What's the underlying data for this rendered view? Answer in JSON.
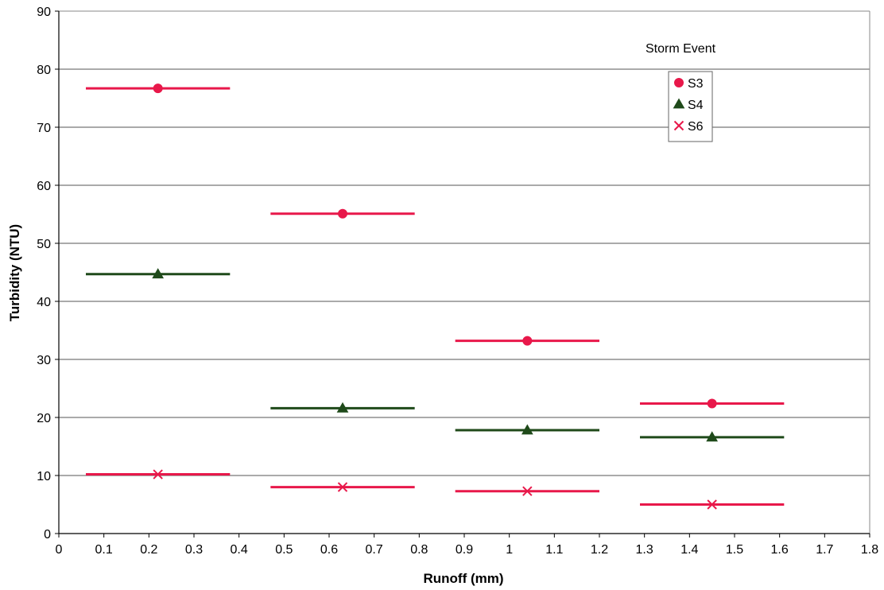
{
  "chart_data": {
    "type": "scatter",
    "title": "",
    "xlabel": "Runoff (mm)",
    "ylabel": "Turbidity (NTU)",
    "xlim": [
      0,
      1.8
    ],
    "ylim": [
      0,
      90
    ],
    "x_ticks": [
      "0",
      "0.1",
      "0.2",
      "0.3",
      "0.4",
      "0.5",
      "0.6",
      "0.7",
      "0.8",
      "0.9",
      "1",
      "1.1",
      "1.2",
      "1.3",
      "1.4",
      "1.5",
      "1.6",
      "1.7",
      "1.8"
    ],
    "y_ticks": [
      "0",
      "10",
      "20",
      "30",
      "40",
      "50",
      "60",
      "70",
      "80",
      "90"
    ],
    "grid": "horizontal",
    "legend_title": "Storm Event",
    "legend_position": "top-right",
    "series": [
      {
        "name": "S3",
        "marker": "circle",
        "color": "#e8184a",
        "points": [
          {
            "x": 0.22,
            "y": 76.7,
            "x_from": 0.06,
            "x_to": 0.38
          },
          {
            "x": 0.63,
            "y": 55.1,
            "x_from": 0.47,
            "x_to": 0.79
          },
          {
            "x": 1.04,
            "y": 33.2,
            "x_from": 0.88,
            "x_to": 1.2
          },
          {
            "x": 1.45,
            "y": 22.4,
            "x_from": 1.29,
            "x_to": 1.61
          }
        ]
      },
      {
        "name": "S4",
        "marker": "triangle",
        "color": "#1f4a1a",
        "points": [
          {
            "x": 0.22,
            "y": 44.7,
            "x_from": 0.06,
            "x_to": 0.38
          },
          {
            "x": 0.63,
            "y": 21.6,
            "x_from": 0.47,
            "x_to": 0.79
          },
          {
            "x": 1.04,
            "y": 17.8,
            "x_from": 0.88,
            "x_to": 1.2
          },
          {
            "x": 1.45,
            "y": 16.6,
            "x_from": 1.29,
            "x_to": 1.61
          }
        ]
      },
      {
        "name": "S6",
        "marker": "x",
        "color": "#e8184a",
        "points": [
          {
            "x": 0.22,
            "y": 10.2,
            "x_from": 0.06,
            "x_to": 0.38
          },
          {
            "x": 0.63,
            "y": 8.0,
            "x_from": 0.47,
            "x_to": 0.79
          },
          {
            "x": 1.04,
            "y": 7.3,
            "x_from": 0.88,
            "x_to": 1.2
          },
          {
            "x": 1.45,
            "y": 5.0,
            "x_from": 1.29,
            "x_to": 1.61
          }
        ]
      }
    ]
  }
}
